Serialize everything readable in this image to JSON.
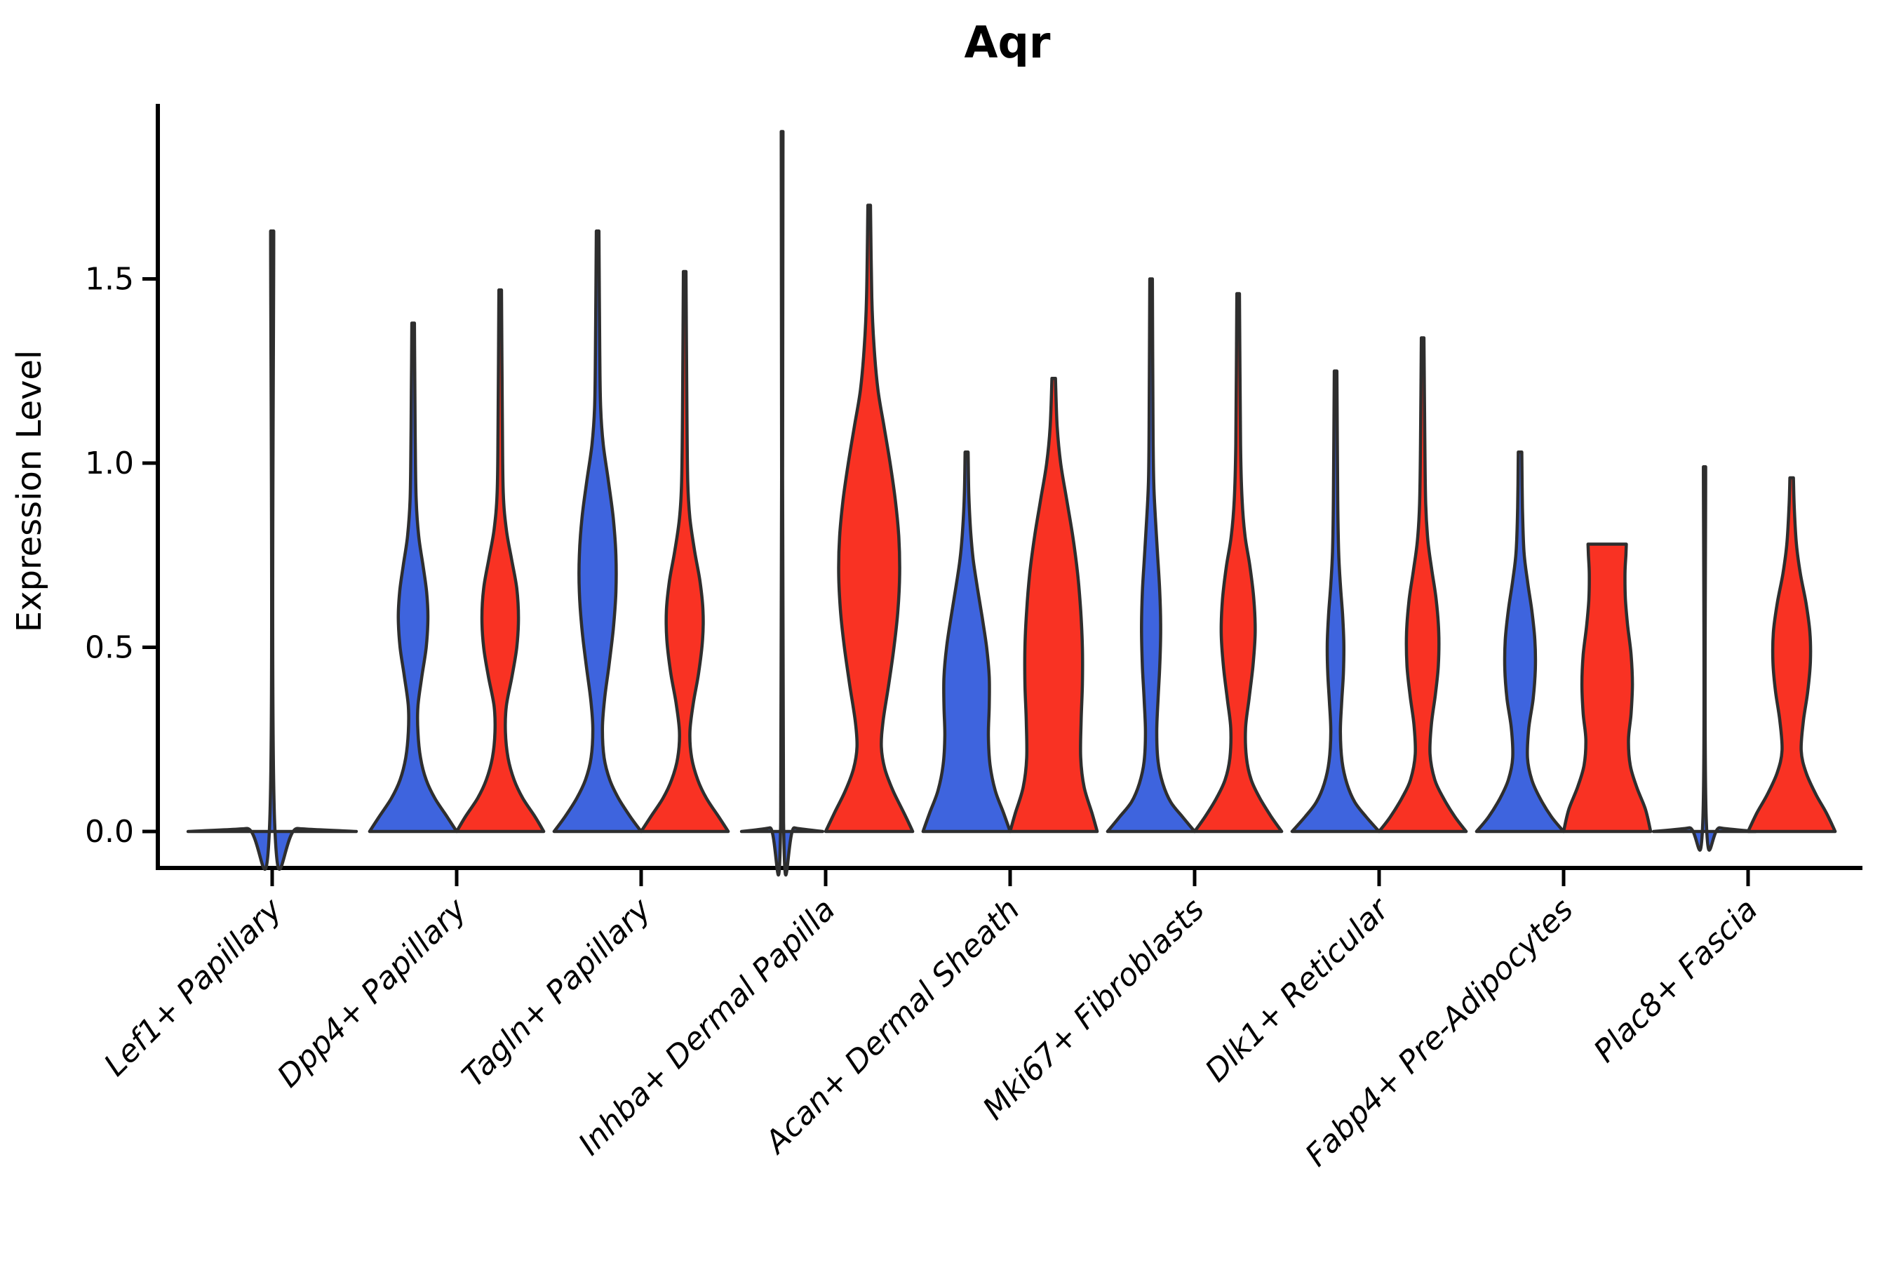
{
  "title": "Aqr",
  "y_axis_label": "Expression Level",
  "chart_data": {
    "type": "violin",
    "title": "Aqr",
    "xlabel": "",
    "ylabel": "Expression Level",
    "ylim": [
      -0.1,
      1.97
    ],
    "yticks": [
      0.0,
      0.5,
      1.0,
      1.5
    ],
    "grid": false,
    "legend": "none",
    "colors": {
      "blue": "#3E64DE",
      "red": "#F93223",
      "edge": "#2E2E2E"
    },
    "categories": [
      "Lef1+ Papillary",
      "Dpp4+ Papillary",
      "Tagln+ Papillary",
      "Inhba+ Dermal Papilla",
      "Acan+ Dermal Sheath",
      "Mki67+ Fibroblasts",
      "Dlk1+ Reticular",
      "Fabp4+ Pre-Adipocytes",
      "Plac8+ Fascia"
    ],
    "violins": [
      {
        "category_index": 0,
        "category": "Lef1+ Papillary",
        "group": "single",
        "color": "blue",
        "max_expression": 1.63,
        "collapsed": true,
        "truncated_top": false,
        "offset": 0,
        "halfwidth": 0.456,
        "profile": [
          [
            0,
            1.0
          ],
          [
            0.008,
            0.3
          ],
          [
            0.02,
            0.03
          ],
          [
            1.63,
            0.018
          ]
        ]
      },
      {
        "category_index": 1,
        "category": "Dpp4+ Papillary",
        "group": "blue",
        "color": "blue",
        "max_expression": 1.38,
        "collapsed": false,
        "truncated_top": false,
        "offset": -0.236,
        "halfwidth": 0.236,
        "profile": [
          [
            0,
            1
          ],
          [
            0.04,
            0.78
          ],
          [
            0.09,
            0.5
          ],
          [
            0.14,
            0.3
          ],
          [
            0.2,
            0.17
          ],
          [
            0.27,
            0.11
          ],
          [
            0.34,
            0.11
          ],
          [
            0.42,
            0.2
          ],
          [
            0.5,
            0.3
          ],
          [
            0.58,
            0.34
          ],
          [
            0.65,
            0.31
          ],
          [
            0.72,
            0.23
          ],
          [
            0.8,
            0.13
          ],
          [
            0.9,
            0.07
          ],
          [
            1.05,
            0.05
          ],
          [
            1.2,
            0.04
          ],
          [
            1.38,
            0.03
          ]
        ]
      },
      {
        "category_index": 1,
        "category": "Dpp4+ Papillary",
        "group": "red",
        "color": "red",
        "max_expression": 1.47,
        "collapsed": false,
        "truncated_top": false,
        "offset": 0.236,
        "halfwidth": 0.236,
        "profile": [
          [
            0,
            1
          ],
          [
            0.04,
            0.8
          ],
          [
            0.09,
            0.52
          ],
          [
            0.14,
            0.32
          ],
          [
            0.2,
            0.18
          ],
          [
            0.27,
            0.12
          ],
          [
            0.34,
            0.14
          ],
          [
            0.42,
            0.27
          ],
          [
            0.5,
            0.38
          ],
          [
            0.58,
            0.42
          ],
          [
            0.66,
            0.38
          ],
          [
            0.74,
            0.26
          ],
          [
            0.82,
            0.14
          ],
          [
            0.92,
            0.07
          ],
          [
            1.1,
            0.05
          ],
          [
            1.47,
            0.03
          ]
        ]
      },
      {
        "category_index": 2,
        "category": "Tagln+ Papillary",
        "group": "blue",
        "color": "blue",
        "max_expression": 1.63,
        "collapsed": false,
        "truncated_top": false,
        "offset": -0.236,
        "halfwidth": 0.236,
        "profile": [
          [
            0,
            1
          ],
          [
            0.04,
            0.75
          ],
          [
            0.09,
            0.48
          ],
          [
            0.14,
            0.28
          ],
          [
            0.2,
            0.15
          ],
          [
            0.28,
            0.11
          ],
          [
            0.36,
            0.16
          ],
          [
            0.45,
            0.26
          ],
          [
            0.55,
            0.36
          ],
          [
            0.65,
            0.42
          ],
          [
            0.75,
            0.42
          ],
          [
            0.85,
            0.36
          ],
          [
            0.95,
            0.25
          ],
          [
            1.05,
            0.13
          ],
          [
            1.15,
            0.07
          ],
          [
            1.3,
            0.05
          ],
          [
            1.63,
            0.03
          ]
        ]
      },
      {
        "category_index": 2,
        "category": "Tagln+ Papillary",
        "group": "red",
        "color": "red",
        "max_expression": 1.52,
        "collapsed": false,
        "truncated_top": false,
        "offset": 0.236,
        "halfwidth": 0.236,
        "profile": [
          [
            0,
            1
          ],
          [
            0.04,
            0.78
          ],
          [
            0.09,
            0.5
          ],
          [
            0.14,
            0.3
          ],
          [
            0.2,
            0.16
          ],
          [
            0.27,
            0.12
          ],
          [
            0.35,
            0.2
          ],
          [
            0.43,
            0.32
          ],
          [
            0.52,
            0.41
          ],
          [
            0.6,
            0.42
          ],
          [
            0.68,
            0.35
          ],
          [
            0.76,
            0.23
          ],
          [
            0.85,
            0.12
          ],
          [
            0.95,
            0.07
          ],
          [
            1.15,
            0.05
          ],
          [
            1.52,
            0.03
          ]
        ]
      },
      {
        "category_index": 3,
        "category": "Inhba+ Dermal Papilla",
        "group": "blue",
        "color": "blue",
        "max_expression": 1.9,
        "collapsed": true,
        "truncated_top": false,
        "offset": -0.236,
        "halfwidth": 0.22,
        "profile": [
          [
            0,
            1.0
          ],
          [
            0.01,
            0.3
          ],
          [
            0.025,
            0.035
          ],
          [
            1.9,
            0.022
          ]
        ]
      },
      {
        "category_index": 3,
        "category": "Inhba+ Dermal Papilla",
        "group": "red",
        "color": "red",
        "max_expression": 1.7,
        "collapsed": false,
        "truncated_top": false,
        "offset": 0.236,
        "halfwidth": 0.236,
        "profile": [
          [
            0,
            1
          ],
          [
            0.05,
            0.8
          ],
          [
            0.11,
            0.55
          ],
          [
            0.17,
            0.36
          ],
          [
            0.23,
            0.28
          ],
          [
            0.3,
            0.32
          ],
          [
            0.4,
            0.45
          ],
          [
            0.5,
            0.57
          ],
          [
            0.6,
            0.66
          ],
          [
            0.7,
            0.7
          ],
          [
            0.8,
            0.68
          ],
          [
            0.9,
            0.6
          ],
          [
            1.0,
            0.48
          ],
          [
            1.1,
            0.34
          ],
          [
            1.2,
            0.2
          ],
          [
            1.32,
            0.11
          ],
          [
            1.45,
            0.06
          ],
          [
            1.7,
            0.03
          ]
        ]
      },
      {
        "category_index": 4,
        "category": "Acan+ Dermal Sheath",
        "group": "blue",
        "color": "blue",
        "max_expression": 1.03,
        "collapsed": false,
        "truncated_top": false,
        "offset": -0.236,
        "halfwidth": 0.236,
        "profile": [
          [
            0,
            1
          ],
          [
            0.05,
            0.85
          ],
          [
            0.11,
            0.66
          ],
          [
            0.18,
            0.54
          ],
          [
            0.26,
            0.5
          ],
          [
            0.34,
            0.52
          ],
          [
            0.42,
            0.52
          ],
          [
            0.5,
            0.46
          ],
          [
            0.58,
            0.36
          ],
          [
            0.66,
            0.25
          ],
          [
            0.74,
            0.15
          ],
          [
            0.82,
            0.09
          ],
          [
            0.92,
            0.05
          ],
          [
            1.03,
            0.035
          ]
        ]
      },
      {
        "category_index": 4,
        "category": "Acan+ Dermal Sheath",
        "group": "red",
        "color": "red",
        "max_expression": 1.23,
        "collapsed": false,
        "truncated_top": false,
        "offset": 0.236,
        "halfwidth": 0.236,
        "profile": [
          [
            0,
            1
          ],
          [
            0.05,
            0.88
          ],
          [
            0.12,
            0.7
          ],
          [
            0.2,
            0.62
          ],
          [
            0.3,
            0.63
          ],
          [
            0.4,
            0.66
          ],
          [
            0.5,
            0.66
          ],
          [
            0.6,
            0.62
          ],
          [
            0.7,
            0.55
          ],
          [
            0.8,
            0.44
          ],
          [
            0.9,
            0.3
          ],
          [
            1.0,
            0.16
          ],
          [
            1.1,
            0.08
          ],
          [
            1.23,
            0.04
          ]
        ]
      },
      {
        "category_index": 5,
        "category": "Mki67+ Fibroblasts",
        "group": "blue",
        "color": "blue",
        "max_expression": 1.5,
        "collapsed": false,
        "truncated_top": false,
        "offset": -0.236,
        "halfwidth": 0.236,
        "profile": [
          [
            0,
            1
          ],
          [
            0.04,
            0.72
          ],
          [
            0.08,
            0.45
          ],
          [
            0.13,
            0.27
          ],
          [
            0.19,
            0.16
          ],
          [
            0.27,
            0.13
          ],
          [
            0.36,
            0.16
          ],
          [
            0.45,
            0.2
          ],
          [
            0.55,
            0.22
          ],
          [
            0.65,
            0.2
          ],
          [
            0.75,
            0.15
          ],
          [
            0.85,
            0.1
          ],
          [
            0.95,
            0.06
          ],
          [
            1.1,
            0.045
          ],
          [
            1.5,
            0.03
          ]
        ]
      },
      {
        "category_index": 5,
        "category": "Mki67+ Fibroblasts",
        "group": "red",
        "color": "red",
        "max_expression": 1.46,
        "collapsed": false,
        "truncated_top": false,
        "offset": 0.236,
        "halfwidth": 0.236,
        "profile": [
          [
            0,
            1
          ],
          [
            0.04,
            0.76
          ],
          [
            0.09,
            0.5
          ],
          [
            0.14,
            0.3
          ],
          [
            0.2,
            0.19
          ],
          [
            0.28,
            0.17
          ],
          [
            0.36,
            0.25
          ],
          [
            0.45,
            0.34
          ],
          [
            0.54,
            0.39
          ],
          [
            0.63,
            0.36
          ],
          [
            0.72,
            0.27
          ],
          [
            0.8,
            0.16
          ],
          [
            0.9,
            0.09
          ],
          [
            1.05,
            0.055
          ],
          [
            1.46,
            0.03
          ]
        ]
      },
      {
        "category_index": 6,
        "category": "Dlk1+ Reticular",
        "group": "blue",
        "color": "blue",
        "max_expression": 1.25,
        "collapsed": false,
        "truncated_top": false,
        "offset": -0.236,
        "halfwidth": 0.236,
        "profile": [
          [
            0,
            1
          ],
          [
            0.04,
            0.7
          ],
          [
            0.08,
            0.44
          ],
          [
            0.13,
            0.26
          ],
          [
            0.19,
            0.15
          ],
          [
            0.27,
            0.11
          ],
          [
            0.35,
            0.14
          ],
          [
            0.43,
            0.18
          ],
          [
            0.51,
            0.19
          ],
          [
            0.59,
            0.16
          ],
          [
            0.67,
            0.11
          ],
          [
            0.76,
            0.07
          ],
          [
            0.9,
            0.05
          ],
          [
            1.25,
            0.03
          ]
        ]
      },
      {
        "category_index": 6,
        "category": "Dlk1+ Reticular",
        "group": "red",
        "color": "red",
        "max_expression": 1.34,
        "collapsed": false,
        "truncated_top": false,
        "offset": 0.236,
        "halfwidth": 0.236,
        "profile": [
          [
            0,
            1
          ],
          [
            0.04,
            0.74
          ],
          [
            0.09,
            0.48
          ],
          [
            0.14,
            0.28
          ],
          [
            0.21,
            0.17
          ],
          [
            0.29,
            0.2
          ],
          [
            0.37,
            0.29
          ],
          [
            0.45,
            0.36
          ],
          [
            0.54,
            0.37
          ],
          [
            0.63,
            0.31
          ],
          [
            0.71,
            0.21
          ],
          [
            0.79,
            0.12
          ],
          [
            0.89,
            0.07
          ],
          [
            1.05,
            0.05
          ],
          [
            1.34,
            0.03
          ]
        ]
      },
      {
        "category_index": 7,
        "category": "Fabp4+ Pre-Adipocytes",
        "group": "blue",
        "color": "blue",
        "max_expression": 1.03,
        "collapsed": false,
        "truncated_top": false,
        "offset": -0.236,
        "halfwidth": 0.236,
        "profile": [
          [
            0,
            1
          ],
          [
            0.04,
            0.72
          ],
          [
            0.09,
            0.46
          ],
          [
            0.14,
            0.27
          ],
          [
            0.2,
            0.17
          ],
          [
            0.28,
            0.2
          ],
          [
            0.36,
            0.3
          ],
          [
            0.44,
            0.35
          ],
          [
            0.52,
            0.34
          ],
          [
            0.6,
            0.27
          ],
          [
            0.68,
            0.17
          ],
          [
            0.76,
            0.09
          ],
          [
            0.88,
            0.055
          ],
          [
            1.03,
            0.04
          ]
        ]
      },
      {
        "category_index": 7,
        "category": "Fabp4+ Pre-Adipocytes",
        "group": "red",
        "color": "red",
        "max_expression": 0.78,
        "collapsed": false,
        "truncated_top": true,
        "offset": 0.236,
        "halfwidth": 0.236,
        "profile": [
          [
            0,
            1
          ],
          [
            0.06,
            0.88
          ],
          [
            0.12,
            0.68
          ],
          [
            0.18,
            0.53
          ],
          [
            0.25,
            0.49
          ],
          [
            0.32,
            0.55
          ],
          [
            0.4,
            0.58
          ],
          [
            0.48,
            0.55
          ],
          [
            0.56,
            0.47
          ],
          [
            0.63,
            0.42
          ],
          [
            0.7,
            0.41
          ],
          [
            0.75,
            0.43
          ],
          [
            0.78,
            0.44
          ]
        ]
      },
      {
        "category_index": 8,
        "category": "Plac8+ Fascia",
        "group": "blue",
        "color": "blue",
        "max_expression": 0.99,
        "collapsed": true,
        "truncated_top": false,
        "offset": -0.236,
        "halfwidth": 0.277,
        "profile": [
          [
            0,
            1.0
          ],
          [
            0.01,
            0.3
          ],
          [
            0.025,
            0.035
          ],
          [
            0.99,
            0.022
          ]
        ]
      },
      {
        "category_index": 8,
        "category": "Plac8+ Fascia",
        "group": "red",
        "color": "red",
        "max_expression": 0.96,
        "collapsed": false,
        "truncated_top": false,
        "offset": 0.236,
        "halfwidth": 0.236,
        "profile": [
          [
            0,
            1
          ],
          [
            0.05,
            0.8
          ],
          [
            0.1,
            0.56
          ],
          [
            0.16,
            0.33
          ],
          [
            0.22,
            0.22
          ],
          [
            0.3,
            0.27
          ],
          [
            0.38,
            0.37
          ],
          [
            0.46,
            0.43
          ],
          [
            0.54,
            0.42
          ],
          [
            0.62,
            0.33
          ],
          [
            0.7,
            0.2
          ],
          [
            0.78,
            0.11
          ],
          [
            0.88,
            0.06
          ],
          [
            0.96,
            0.04
          ]
        ]
      }
    ]
  }
}
